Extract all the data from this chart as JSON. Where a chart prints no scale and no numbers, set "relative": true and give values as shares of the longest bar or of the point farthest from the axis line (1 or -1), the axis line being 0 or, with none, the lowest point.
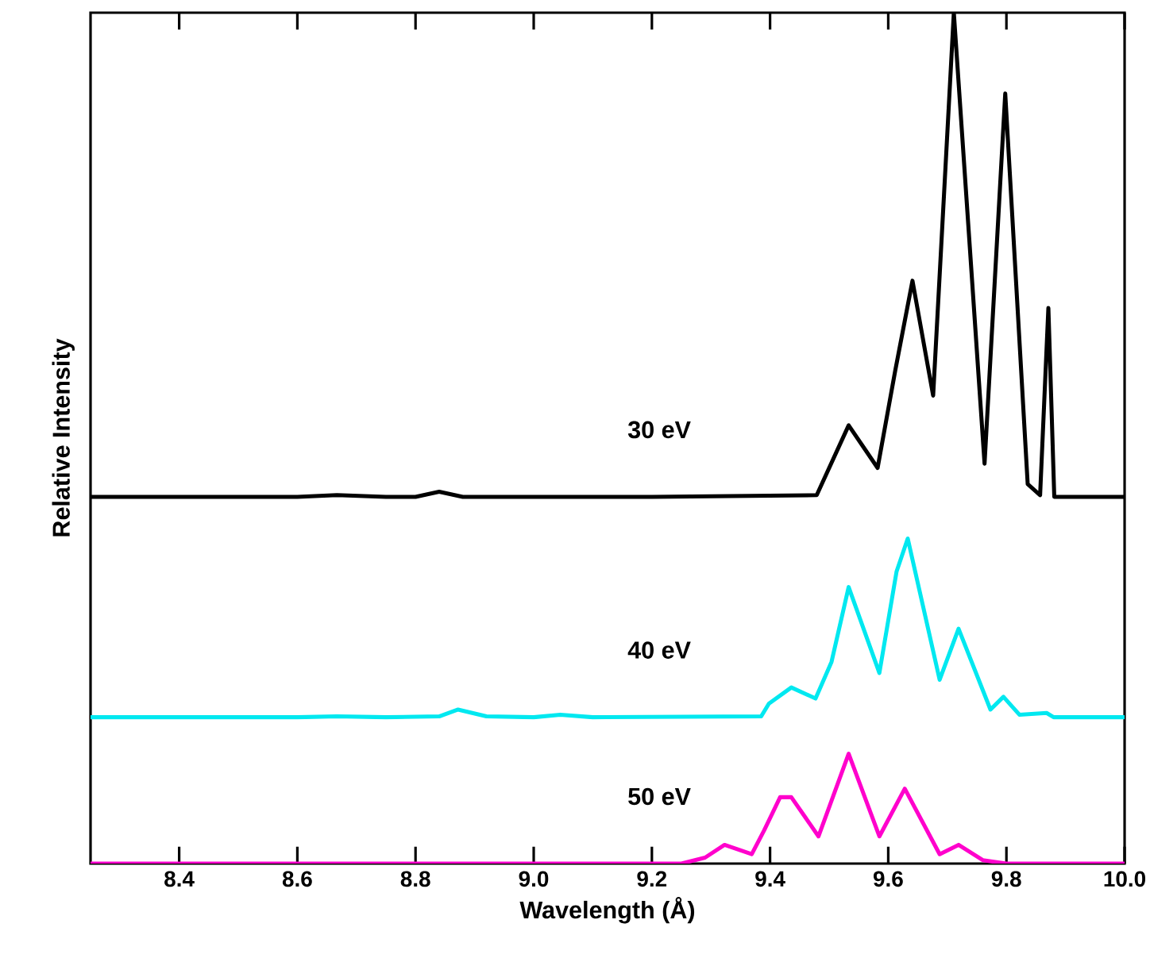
{
  "chart_data": {
    "type": "line",
    "relative": true,
    "xlabel": "Wavelength (Å)",
    "ylabel": "Relative Intensity",
    "xlim": [
      8.25,
      10.0
    ],
    "xticks": [
      8.4,
      8.6,
      8.8,
      {
        "value": 9.0,
        "label": "9.0"
      },
      9.2,
      9.4,
      9.6,
      9.8,
      {
        "value": 10.0,
        "label": "10.0"
      }
    ],
    "series": [
      {
        "name": "30 eV",
        "color": "#000000",
        "x": [
          8.25,
          8.6,
          8.667,
          8.75,
          8.8,
          8.84,
          8.88,
          9.2,
          9.479,
          9.533,
          9.582,
          9.612,
          9.641,
          9.676,
          9.711,
          9.763,
          9.798,
          9.836,
          9.857,
          9.871,
          9.881,
          10.0
        ],
        "values": [
          0.431,
          0.431,
          0.433,
          0.431,
          0.431,
          0.437,
          0.431,
          0.431,
          0.433,
          0.515,
          0.465,
          0.58,
          0.685,
          0.55,
          1.0,
          0.47,
          0.905,
          0.446,
          0.433,
          0.653,
          0.431,
          0.431
        ]
      },
      {
        "name": "40 eV",
        "color": "#00e8f0",
        "x": [
          8.25,
          8.6,
          8.667,
          8.75,
          8.84,
          8.872,
          8.92,
          9.0,
          9.045,
          9.1,
          9.385,
          9.398,
          9.436,
          9.477,
          9.504,
          9.533,
          9.585,
          9.614,
          9.633,
          9.687,
          9.719,
          9.773,
          9.795,
          9.822,
          9.868,
          9.88,
          10.0
        ],
        "values": [
          0.172,
          0.172,
          0.173,
          0.172,
          0.173,
          0.181,
          0.173,
          0.172,
          0.175,
          0.172,
          0.173,
          0.188,
          0.207,
          0.194,
          0.237,
          0.325,
          0.224,
          0.343,
          0.382,
          0.216,
          0.276,
          0.181,
          0.196,
          0.175,
          0.177,
          0.172,
          0.172
        ]
      },
      {
        "name": "50 eV",
        "color": "#ff00cc",
        "x": [
          8.25,
          9.25,
          9.29,
          9.323,
          9.369,
          9.39,
          9.417,
          9.436,
          9.482,
          9.533,
          9.585,
          9.628,
          9.687,
          9.719,
          9.76,
          9.8,
          10.0
        ],
        "values": [
          0,
          0,
          0.007,
          0.022,
          0.011,
          0.039,
          0.078,
          0.078,
          0.032,
          0.129,
          0.032,
          0.088,
          0.011,
          0.022,
          0.004,
          0,
          0
        ]
      }
    ]
  }
}
